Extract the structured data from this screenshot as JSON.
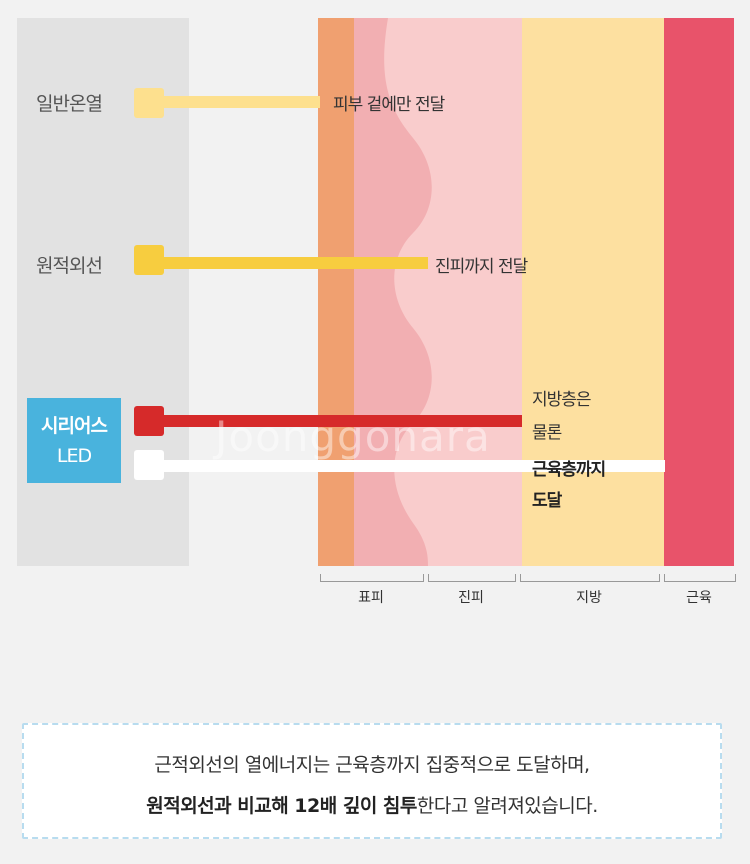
{
  "sources": [
    {
      "label": "일반온열",
      "color": "#fde08e"
    },
    {
      "label": "원적외선",
      "color": "#f7cd3f"
    },
    {
      "label_line1": "시리어스",
      "label_line2": "LED",
      "color_red": "#d62a2a",
      "color_white": "#ffffff",
      "badge_color": "#49b3dd"
    }
  ],
  "penetration": [
    {
      "text": "피부 겉에만 전달"
    },
    {
      "text": "진피까지 전달"
    },
    {
      "line1": "지방층은",
      "line2": "물론",
      "line3": "근육층까지",
      "line4": "도달"
    }
  ],
  "layers": [
    {
      "name": "표피",
      "color": "#f0a070"
    },
    {
      "name": "진피",
      "color": "#f9cccc"
    },
    {
      "name": "지방",
      "color": "#fde0a0"
    },
    {
      "name": "근육",
      "color": "#e8536a"
    }
  ],
  "info": {
    "line1": "근적외선의 열에너지는 근육층까지 집중적으로 도달하며,",
    "line2_bold": "원적외선과 비교해 12배 깊이 침투",
    "line2_rest": "한다고 알려져있습니다."
  },
  "watermark": "Joonggonara"
}
